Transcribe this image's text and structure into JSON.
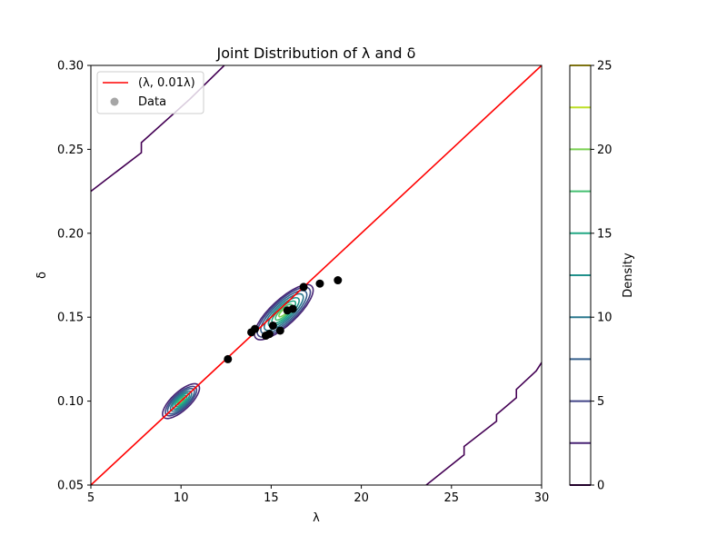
{
  "chart_data": {
    "type": "contour",
    "title": "Joint Distribution of λ and δ",
    "xlabel": "λ",
    "ylabel": "δ",
    "xlim": [
      5,
      30
    ],
    "ylim": [
      0.05,
      0.3
    ],
    "xticks": [
      5,
      10,
      15,
      20,
      25,
      30
    ],
    "yticks": [
      0.05,
      0.1,
      0.15,
      0.2,
      0.25,
      0.3
    ],
    "legend": {
      "placement": "top-left",
      "entries": [
        {
          "label": "(λ, 0.01λ)",
          "kind": "line",
          "color": "#ff0000"
        },
        {
          "label": "Data",
          "kind": "marker",
          "color": "#808080"
        }
      ]
    },
    "line": {
      "name": "(λ, 0.01λ)",
      "x": [
        5,
        30
      ],
      "y": [
        0.05,
        0.3
      ],
      "color": "#ff0000"
    },
    "scatter": {
      "name": "Data",
      "color": "#000000",
      "x": [
        12.6,
        13.9,
        14.1,
        14.7,
        14.9,
        15.1,
        15.5,
        15.9,
        16.2,
        16.8,
        17.7,
        18.7
      ],
      "y": [
        0.125,
        0.141,
        0.143,
        0.139,
        0.14,
        0.145,
        0.142,
        0.154,
        0.155,
        0.168,
        0.17,
        0.172
      ]
    },
    "colorbar": {
      "label": "Density",
      "ticks": [
        0,
        5,
        10,
        15,
        20,
        25
      ],
      "range": [
        0,
        25
      ],
      "levels": [
        0,
        2.5,
        5,
        7.5,
        10,
        12.5,
        15,
        17.5,
        20,
        22.5,
        25
      ],
      "level_colors": [
        "#440154",
        "#482475",
        "#414487",
        "#355f8d",
        "#2a788e",
        "#21918c",
        "#22a884",
        "#44bf70",
        "#7ad151",
        "#bddf26",
        "#fde725"
      ]
    },
    "density_peaks": [
      {
        "x": 10.0,
        "y": 0.1
      },
      {
        "x": 15.7,
        "y": 0.153
      }
    ],
    "grid": false
  }
}
